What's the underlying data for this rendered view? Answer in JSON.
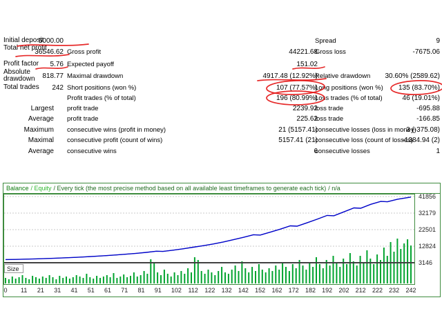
{
  "report": {
    "rows": [
      {
        "c1": "Initial deposit",
        "v1": "5000.00",
        "c3": "Spread",
        "v3": "9"
      },
      {
        "c1": "Total net profit",
        "v1": "36546.62",
        "c2": "Gross profit",
        "v2": "44221.68",
        "c3": "Gross loss",
        "v3": "-7675.06"
      },
      {
        "c1": "Profit factor",
        "v1": "5.76",
        "c2": "Expected payoff",
        "v2": "151.02"
      },
      {
        "c1": "Absolute drawdown",
        "v1": "818.77",
        "c2": "Maximal drawdown",
        "v2": "4917.48 (12.92%)",
        "c3": "Relative drawdown",
        "v3": "30.60% (2589.62)"
      },
      {
        "c1": "Total trades",
        "v1": "242",
        "c2": "Short positions (won %)",
        "v2": "107 (77.57%)",
        "c3": "Long positions (won %)",
        "v3": "135 (83.70%)"
      },
      {
        "c2": "Profit trades (% of total)",
        "v2": "196 (80.99%)",
        "c3": "Loss trades (% of total)",
        "v3": "46 (19.01%)"
      },
      {
        "g": "Largest",
        "c2": "profit trade",
        "v2": "2239.92",
        "c3": "loss trade",
        "v3": "-695.88"
      },
      {
        "g": "Average",
        "c2": "profit trade",
        "v2": "225.62",
        "c3": "loss trade",
        "v3": "-166.85"
      },
      {
        "g": "Maximum",
        "c2": "consecutive wins (profit in money)",
        "v2": "21 (5157.41)",
        "c3": "consecutive losses (loss in money)",
        "v3": "3 (-375.08)"
      },
      {
        "g": "Maximal",
        "c2": "consecutive profit (count of wins)",
        "v2": "5157.41 (21)",
        "c3": "consecutive loss (count of losses)",
        "v3": "-1384.94 (2)"
      },
      {
        "g": "Average",
        "c2": "consecutive wins",
        "v2": "6",
        "c3": "consecutive losses",
        "v3": "1"
      }
    ]
  },
  "annotations": {
    "underlined": [
      "5000.00",
      "36546.62",
      "5.76",
      "151.02",
      "4917.48 (12.92%)"
    ],
    "circled": [
      "107 (77.57%)",
      "196 (80.99%)",
      "135 (83.70%)"
    ]
  },
  "chart_data": {
    "type": "line",
    "legend": {
      "balance": "Balance",
      "equity": "/ Equity",
      "model": "/ Every tick (the most precise method based on all available least timeframes to generate each tick)",
      "quality": "/ n/a"
    },
    "size_label": "Size",
    "y_ticks": [
      41856,
      32179,
      22501,
      12824,
      3146
    ],
    "x_ticks": [
      0,
      11,
      21,
      31,
      41,
      51,
      61,
      71,
      81,
      91,
      102,
      112,
      122,
      132,
      142,
      152,
      162,
      172,
      182,
      192,
      202,
      212,
      222,
      232,
      242
    ],
    "x_range": [
      0,
      242
    ],
    "ylim": [
      3146,
      41856
    ],
    "grid": true,
    "balance_series": [
      [
        0,
        5000
      ],
      [
        6,
        5100
      ],
      [
        12,
        5250
      ],
      [
        18,
        5400
      ],
      [
        24,
        5600
      ],
      [
        30,
        5800
      ],
      [
        36,
        6050
      ],
      [
        42,
        6300
      ],
      [
        48,
        6600
      ],
      [
        54,
        6950
      ],
      [
        60,
        7300
      ],
      [
        66,
        7700
      ],
      [
        72,
        8150
      ],
      [
        78,
        8650
      ],
      [
        84,
        9200
      ],
      [
        90,
        9900
      ],
      [
        94,
        9750
      ],
      [
        100,
        10500
      ],
      [
        106,
        11300
      ],
      [
        112,
        12200
      ],
      [
        118,
        13100
      ],
      [
        124,
        14100
      ],
      [
        130,
        15300
      ],
      [
        136,
        16600
      ],
      [
        142,
        18000
      ],
      [
        148,
        19500
      ],
      [
        152,
        19300
      ],
      [
        158,
        21000
      ],
      [
        164,
        22800
      ],
      [
        170,
        24700
      ],
      [
        174,
        24500
      ],
      [
        180,
        26500
      ],
      [
        186,
        28600
      ],
      [
        192,
        30800
      ],
      [
        196,
        30600
      ],
      [
        202,
        32900
      ],
      [
        208,
        35200
      ],
      [
        212,
        35000
      ],
      [
        218,
        37300
      ],
      [
        224,
        39000
      ],
      [
        228,
        38800
      ],
      [
        234,
        40300
      ],
      [
        242,
        41547
      ]
    ],
    "size_bars": [
      8,
      6,
      10,
      7,
      9,
      12,
      8,
      6,
      11,
      9,
      7,
      10,
      8,
      12,
      9,
      6,
      11,
      8,
      10,
      7,
      9,
      12,
      10,
      8,
      14,
      9,
      7,
      11,
      8,
      10,
      12,
      9,
      15,
      8,
      10,
      13,
      9,
      11,
      16,
      10,
      12,
      18,
      14,
      35,
      30,
      16,
      12,
      20,
      14,
      10,
      16,
      12,
      18,
      14,
      22,
      16,
      38,
      34,
      18,
      14,
      20,
      16,
      12,
      18,
      24,
      16,
      14,
      20,
      26,
      18,
      32,
      22,
      16,
      24,
      18,
      28,
      20,
      16,
      22,
      18,
      26,
      20,
      30,
      24,
      18,
      28,
      22,
      34,
      26,
      20,
      30,
      24,
      38,
      28,
      22,
      34,
      26,
      40,
      30,
      24,
      36,
      28,
      44,
      32,
      26,
      40,
      30,
      48,
      36,
      28,
      42,
      34,
      52,
      40,
      60,
      46,
      65,
      50,
      58,
      64,
      55
    ],
    "colors": {
      "balance_line": "#0000cc",
      "equity_line": "#00a830",
      "size_bars": "#00a32e",
      "frame": "#3d8b3d",
      "grid": "#c8c8c8",
      "annotation": "#e31212"
    }
  }
}
